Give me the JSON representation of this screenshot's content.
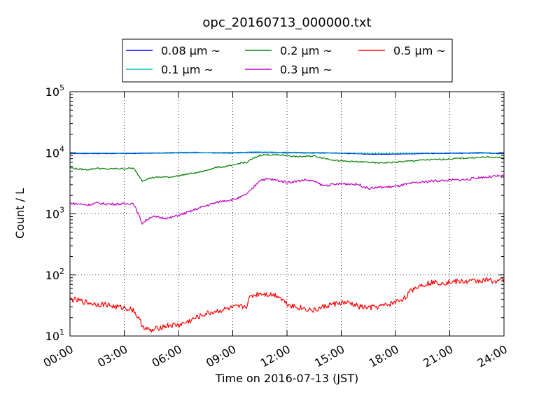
{
  "chart_data": {
    "type": "line",
    "title": "opc_20160713_000000.txt",
    "xlabel": "Time on 2016-07-13 (JST)",
    "ylabel": "Count / L",
    "y_scale": "log",
    "ylim": [
      10,
      100000
    ],
    "xlim": [
      "00:00",
      "24:00"
    ],
    "x_ticks": [
      "00:00",
      "03:00",
      "06:00",
      "09:00",
      "12:00",
      "15:00",
      "18:00",
      "21:00",
      "24:00"
    ],
    "y_ticks": [
      {
        "value": 10,
        "base": "10",
        "exp": "1"
      },
      {
        "value": 100,
        "base": "10",
        "exp": "2"
      },
      {
        "value": 1000,
        "base": "10",
        "exp": "3"
      },
      {
        "value": 10000,
        "base": "10",
        "exp": "4"
      },
      {
        "value": 100000,
        "base": "10",
        "exp": "5"
      }
    ],
    "grid": true,
    "legend_position": "top-center",
    "x": [
      "00:00",
      "00:30",
      "01:00",
      "01:30",
      "02:00",
      "02:30",
      "03:00",
      "03:30",
      "04:00",
      "04:15",
      "04:30",
      "05:00",
      "05:30",
      "06:00",
      "06:30",
      "07:00",
      "07:30",
      "08:00",
      "08:30",
      "09:00",
      "09:30",
      "09:45",
      "10:00",
      "10:30",
      "11:00",
      "11:30",
      "12:00",
      "12:30",
      "13:00",
      "13:30",
      "14:00",
      "14:30",
      "15:00",
      "15:30",
      "16:00",
      "16:30",
      "17:00",
      "17:30",
      "18:00",
      "18:30",
      "19:00",
      "19:30",
      "20:00",
      "20:30",
      "21:00",
      "21:30",
      "22:00",
      "22:30",
      "23:00",
      "23:30",
      "24:00"
    ],
    "series": [
      {
        "name": "0.08 μm ~",
        "color": "#0000ff",
        "values": [
          9700,
          9700,
          9700,
          9700,
          9700,
          9700,
          9700,
          9700,
          9800,
          9800,
          9800,
          9900,
          9900,
          10000,
          10000,
          10000,
          10000,
          9900,
          9900,
          9900,
          10000,
          10000,
          10100,
          10100,
          10100,
          10000,
          10000,
          10000,
          9900,
          9900,
          9900,
          9900,
          9800,
          9700,
          9600,
          9500,
          9500,
          9500,
          9500,
          9600,
          9600,
          9700,
          9700,
          9700,
          9800,
          9800,
          9800,
          9900,
          9900,
          9700,
          9700
        ]
      },
      {
        "name": "0.1 μm ~",
        "color": "#00bfbf",
        "values": [
          9900,
          9900,
          9900,
          9900,
          9900,
          9900,
          9900,
          9900,
          10000,
          10000,
          10000,
          10000,
          10100,
          10200,
          10200,
          10200,
          10100,
          10100,
          10100,
          10100,
          10200,
          10200,
          10300,
          10300,
          10300,
          10200,
          10200,
          10200,
          10100,
          10100,
          10100,
          10000,
          10000,
          9900,
          9800,
          9700,
          9700,
          9700,
          9700,
          9800,
          9800,
          9900,
          9900,
          9900,
          10000,
          10000,
          10000,
          10100,
          10100,
          9900,
          9900
        ]
      },
      {
        "name": "0.2 μm ~",
        "color": "#008000",
        "values": [
          5700,
          5400,
          5300,
          5600,
          5400,
          5500,
          5500,
          5600,
          3500,
          3700,
          3900,
          4000,
          4000,
          4200,
          4500,
          4700,
          5100,
          5700,
          5900,
          6200,
          6900,
          6800,
          7700,
          9100,
          9300,
          9200,
          9100,
          8600,
          8700,
          8900,
          8200,
          7700,
          7300,
          7200,
          7100,
          7000,
          6800,
          6900,
          7000,
          7200,
          7400,
          7600,
          7700,
          7800,
          7900,
          8100,
          8200,
          8400,
          8500,
          8400,
          8300
        ]
      },
      {
        "name": "0.3 μm ~",
        "color": "#bf00bf",
        "values": [
          1500,
          1450,
          1400,
          1500,
          1450,
          1450,
          1450,
          1500,
          700,
          800,
          900,
          870,
          850,
          950,
          1050,
          1200,
          1350,
          1500,
          1650,
          1700,
          1900,
          2100,
          2400,
          3600,
          3700,
          3500,
          3300,
          3400,
          3600,
          3400,
          2900,
          3000,
          3100,
          3100,
          3000,
          2600,
          2700,
          2750,
          2800,
          3000,
          3200,
          3300,
          3450,
          3500,
          3550,
          3600,
          3650,
          3900,
          4000,
          4100,
          4200
        ]
      },
      {
        "name": "0.5 μm ~",
        "color": "#ff0000",
        "values": [
          40,
          38,
          35,
          33,
          33,
          30,
          29,
          27,
          15,
          13,
          12,
          14,
          15,
          15,
          17,
          20,
          23,
          25,
          27,
          29,
          30,
          31,
          45,
          50,
          48,
          46,
          34,
          30,
          28,
          26,
          30,
          33,
          35,
          34,
          30,
          29,
          30,
          32,
          36,
          42,
          60,
          70,
          75,
          75,
          76,
          78,
          78,
          80,
          82,
          80,
          85
        ]
      }
    ]
  }
}
